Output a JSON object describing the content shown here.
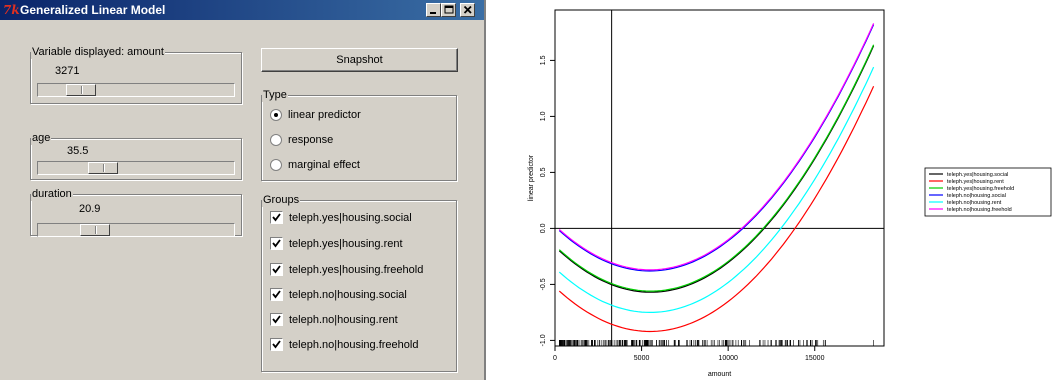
{
  "window": {
    "title": "Generalized Linear Model",
    "logo": "7k",
    "controls": [
      "minimize-icon",
      "maximize-icon",
      "close-icon"
    ]
  },
  "sliders": [
    {
      "label": "Variable displayed: amount",
      "value": "3271",
      "level": 0.16
    },
    {
      "label": "age",
      "value": "35.5",
      "level": 0.25
    },
    {
      "label": "duration",
      "value": "20.9",
      "level": 0.22
    }
  ],
  "snapshot_label": "Snapshot",
  "type_group": {
    "label": "Type",
    "options": [
      {
        "label": "linear predictor",
        "selected": true
      },
      {
        "label": "response",
        "selected": false
      },
      {
        "label": "marginal effect",
        "selected": false
      }
    ]
  },
  "groups_group": {
    "label": "Groups",
    "items": [
      {
        "label": "teleph.yes|housing.social",
        "checked": true
      },
      {
        "label": "teleph.yes|housing.rent",
        "checked": true
      },
      {
        "label": "teleph.yes|housing.freehold",
        "checked": true
      },
      {
        "label": "teleph.no|housing.social",
        "checked": true
      },
      {
        "label": "teleph.no|housing.rent",
        "checked": true
      },
      {
        "label": "teleph.no|housing.freehold",
        "checked": true
      }
    ]
  },
  "chart_data": {
    "type": "line",
    "xlabel": "amount",
    "ylabel": "linear predictor",
    "xlim": [
      0,
      19000
    ],
    "ylim": [
      -1.05,
      1.95
    ],
    "xticks": [
      0,
      5000,
      10000,
      15000
    ],
    "yticks": [
      -1.0,
      -0.5,
      0.0,
      0.5,
      1.0,
      1.5
    ],
    "vline": 3271,
    "hline": 0,
    "rug": true,
    "series": [
      {
        "name": "teleph.yes|housing.social",
        "color": "#000000",
        "x": [
          250,
          5600,
          18400
        ],
        "y": [
          -0.2,
          -0.57,
          1.63
        ]
      },
      {
        "name": "teleph.yes|housing.rent",
        "color": "#ff0000",
        "x": [
          250,
          5600,
          18400
        ],
        "y": [
          -0.56,
          -0.92,
          1.27
        ]
      },
      {
        "name": "teleph.yes|housing.freehold",
        "color": "#00cd00",
        "x": [
          250,
          5600,
          18400
        ],
        "y": [
          -0.19,
          -0.56,
          1.64
        ]
      },
      {
        "name": "teleph.no|housing.social",
        "color": "#0000ff",
        "x": [
          250,
          5600,
          18400
        ],
        "y": [
          -0.02,
          -0.38,
          1.82
        ]
      },
      {
        "name": "teleph.no|housing.rent",
        "color": "#00ffff",
        "x": [
          250,
          5600,
          18400
        ],
        "y": [
          -0.39,
          -0.75,
          1.44
        ]
      },
      {
        "name": "teleph.no|housing.freehold",
        "color": "#ff00ff",
        "x": [
          250,
          5600,
          18400
        ],
        "y": [
          -0.01,
          -0.37,
          1.83
        ]
      }
    ]
  }
}
